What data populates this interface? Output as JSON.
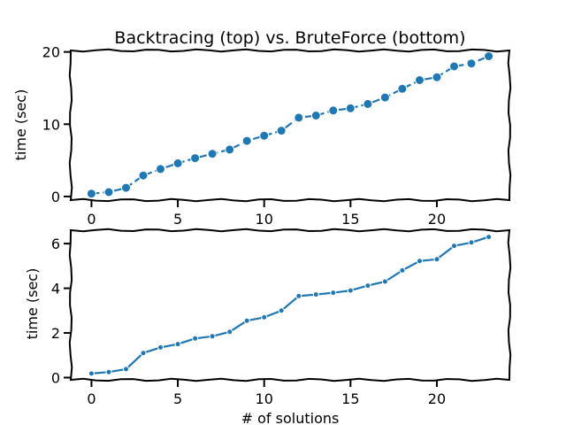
{
  "chart_data": [
    {
      "type": "line",
      "title": "Backtracing (top) vs. BruteForce (bottom)",
      "xlabel": "",
      "ylabel": "time (sec)",
      "x": [
        0,
        1,
        2,
        3,
        4,
        5,
        6,
        7,
        8,
        9,
        10,
        11,
        12,
        13,
        14,
        15,
        16,
        17,
        18,
        19,
        20,
        21,
        22,
        23
      ],
      "series": [
        {
          "values": [
            0.4,
            0.6,
            1.2,
            2.9,
            3.8,
            4.6,
            5.3,
            5.9,
            6.5,
            7.7,
            8.4,
            9.1,
            10.9,
            11.2,
            11.9,
            12.2,
            12.8,
            13.7,
            14.9,
            16.1,
            16.5,
            18.0,
            18.4,
            19.4
          ]
        }
      ],
      "xlim": [
        -1.2,
        24.2
      ],
      "ylim": [
        -0.5,
        20.2
      ],
      "xticks": [
        0,
        5,
        10,
        15,
        20
      ],
      "yticks": [
        0,
        10,
        20
      ],
      "marker": "large-dot",
      "line_style": "dashed",
      "grid": false,
      "color": "#1f77b4"
    },
    {
      "type": "line",
      "title": "",
      "xlabel": "# of solutions",
      "ylabel": "time (sec)",
      "x": [
        0,
        1,
        2,
        3,
        4,
        5,
        6,
        7,
        8,
        9,
        10,
        11,
        12,
        13,
        14,
        15,
        16,
        17,
        18,
        19,
        20,
        21,
        22,
        23
      ],
      "series": [
        {
          "values": [
            0.18,
            0.25,
            0.38,
            1.1,
            1.35,
            1.5,
            1.75,
            1.85,
            2.05,
            2.55,
            2.7,
            3.0,
            3.65,
            3.72,
            3.8,
            3.9,
            4.12,
            4.3,
            4.8,
            5.22,
            5.3,
            5.9,
            6.05,
            6.3
          ]
        }
      ],
      "xlim": [
        -1.2,
        24.2
      ],
      "ylim": [
        -0.1,
        6.6
      ],
      "xticks": [
        0,
        5,
        10,
        15,
        20
      ],
      "yticks": [
        0,
        2,
        4,
        6
      ],
      "marker": "small-dot",
      "line_style": "solid",
      "grid": false,
      "color": "#1f77b4"
    }
  ]
}
